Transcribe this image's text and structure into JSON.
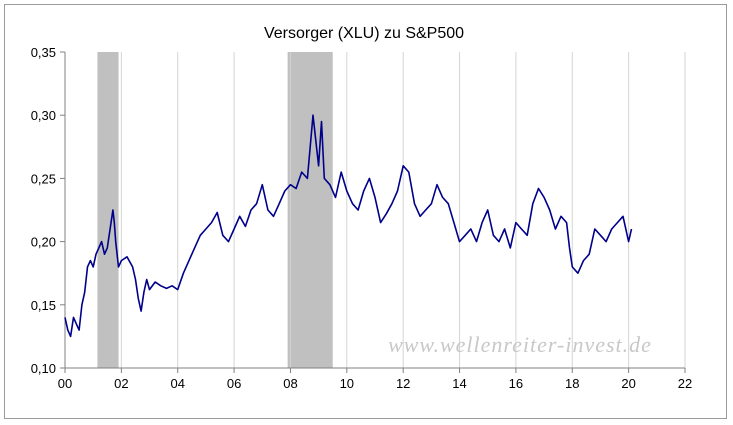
{
  "chart_data": {
    "type": "line",
    "title": "Versorger (XLU) zu S&P500",
    "xlabel": "",
    "ylabel": "",
    "xlim": [
      0,
      22
    ],
    "ylim": [
      0.1,
      0.35
    ],
    "x_ticks": [
      "00",
      "02",
      "04",
      "06",
      "08",
      "10",
      "12",
      "14",
      "16",
      "18",
      "20",
      "22"
    ],
    "y_ticks": [
      "0,10",
      "0,15",
      "0,20",
      "0,25",
      "0,30",
      "0,35"
    ],
    "grid": "vertical",
    "line_color": "#00008b",
    "shade_color": "#c0c0c0",
    "recession_periods": [
      [
        1.15,
        1.9
      ],
      [
        7.9,
        9.5
      ]
    ],
    "watermark": "www.wellenreiter-invest.de",
    "series": [
      {
        "x": [
          0.0,
          0.1,
          0.2,
          0.3,
          0.4,
          0.5,
          0.6,
          0.7,
          0.8,
          0.9,
          1.0,
          1.1,
          1.2,
          1.3,
          1.4,
          1.5,
          1.6,
          1.7,
          1.75,
          1.8,
          1.9,
          2.0,
          2.2,
          2.4,
          2.5,
          2.6,
          2.7,
          2.8,
          2.9,
          3.0,
          3.2,
          3.4,
          3.6,
          3.8,
          4.0,
          4.2,
          4.4,
          4.6,
          4.8,
          5.0,
          5.2,
          5.4,
          5.6,
          5.8,
          6.0,
          6.2,
          6.4,
          6.6,
          6.8,
          7.0,
          7.2,
          7.4,
          7.6,
          7.8,
          8.0,
          8.2,
          8.4,
          8.6,
          8.8,
          8.9,
          9.0,
          9.1,
          9.2,
          9.4,
          9.6,
          9.8,
          10.0,
          10.2,
          10.4,
          10.6,
          10.8,
          11.0,
          11.2,
          11.4,
          11.6,
          11.8,
          12.0,
          12.2,
          12.4,
          12.6,
          12.8,
          13.0,
          13.2,
          13.4,
          13.6,
          13.8,
          14.0,
          14.2,
          14.4,
          14.6,
          14.8,
          15.0,
          15.2,
          15.4,
          15.6,
          15.8,
          16.0,
          16.2,
          16.4,
          16.6,
          16.8,
          17.0,
          17.2,
          17.4,
          17.6,
          17.8,
          17.9,
          18.0,
          18.2,
          18.4,
          18.6,
          18.8,
          19.0,
          19.2,
          19.4,
          19.6,
          19.8,
          20.0,
          20.1
        ],
        "values": [
          0.14,
          0.13,
          0.125,
          0.14,
          0.135,
          0.13,
          0.15,
          0.16,
          0.18,
          0.185,
          0.18,
          0.19,
          0.195,
          0.2,
          0.19,
          0.195,
          0.21,
          0.225,
          0.215,
          0.2,
          0.18,
          0.185,
          0.188,
          0.18,
          0.17,
          0.155,
          0.145,
          0.16,
          0.17,
          0.162,
          0.168,
          0.165,
          0.163,
          0.165,
          0.162,
          0.175,
          0.185,
          0.195,
          0.205,
          0.21,
          0.215,
          0.223,
          0.205,
          0.2,
          0.21,
          0.22,
          0.212,
          0.225,
          0.23,
          0.245,
          0.225,
          0.22,
          0.23,
          0.24,
          0.245,
          0.242,
          0.255,
          0.25,
          0.3,
          0.28,
          0.26,
          0.295,
          0.25,
          0.245,
          0.235,
          0.255,
          0.24,
          0.23,
          0.225,
          0.24,
          0.25,
          0.235,
          0.215,
          0.222,
          0.23,
          0.24,
          0.26,
          0.255,
          0.23,
          0.22,
          0.225,
          0.23,
          0.245,
          0.235,
          0.23,
          0.215,
          0.2,
          0.205,
          0.21,
          0.2,
          0.215,
          0.225,
          0.205,
          0.2,
          0.21,
          0.195,
          0.215,
          0.21,
          0.205,
          0.23,
          0.242,
          0.235,
          0.225,
          0.21,
          0.22,
          0.215,
          0.195,
          0.18,
          0.175,
          0.185,
          0.19,
          0.21,
          0.205,
          0.2,
          0.21,
          0.215,
          0.22,
          0.2,
          0.21
        ]
      }
    ]
  }
}
